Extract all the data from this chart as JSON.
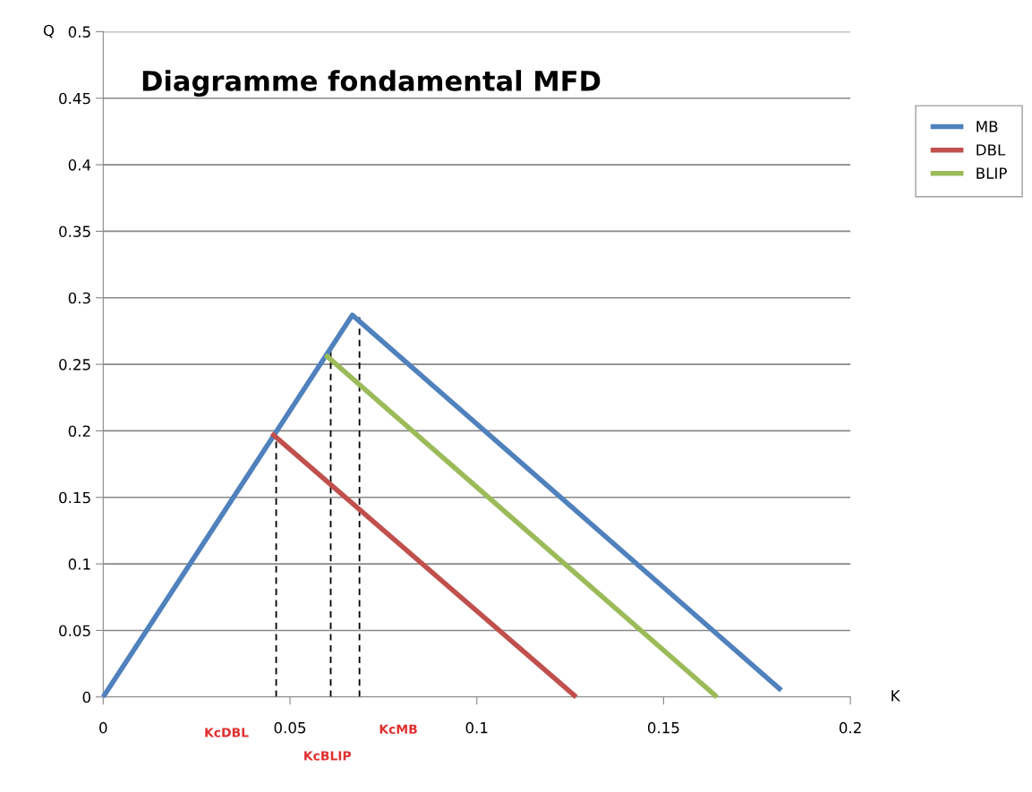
{
  "chart_data": {
    "type": "line",
    "title": "Diagramme fondamental MFD",
    "xlabel": "K",
    "ylabel": "Q",
    "xlim": [
      0,
      0.2
    ],
    "xticks": [
      0,
      0.05,
      0.1,
      0.15,
      0.2
    ],
    "ylim": [
      0,
      0.5
    ],
    "yticks": [
      0,
      0.05,
      0.1,
      0.15,
      0.2,
      0.25,
      0.3,
      0.35,
      0.4,
      0.45,
      0.5
    ],
    "grid": "y",
    "legend": "top right",
    "line_style": "solid",
    "marker": "none",
    "series": [
      {
        "name": "MB",
        "color": "#4f81bd",
        "x": [
          0,
          0.0667,
          0.1815
        ],
        "values": [
          0,
          0.287,
          0.005
        ]
      },
      {
        "name": "DBL",
        "color": "#c0504d",
        "x": [
          0.0451,
          0.1266
        ],
        "values": [
          0.198,
          0
        ]
      },
      {
        "name": "BLIP",
        "color": "#9bbb59",
        "x": [
          0.0595,
          0.1643
        ],
        "values": [
          0.257,
          0
        ]
      },
      {
        "color": "#000000",
        "line_style": "dashed",
        "x": [
          0.0463,
          0.0463
        ],
        "values": [
          0,
          0.198
        ]
      },
      {
        "color": "#000000",
        "line_style": "dashed",
        "x": [
          0.0609,
          0.0609
        ],
        "values": [
          0,
          0.26
        ]
      },
      {
        "color": "#000000",
        "line_style": "dashed",
        "x": [
          0.0686,
          0.0686
        ],
        "values": [
          0,
          0.287
        ]
      }
    ],
    "annotations": [
      "KcDBL",
      "KcBLIP",
      "KcMB"
    ]
  }
}
